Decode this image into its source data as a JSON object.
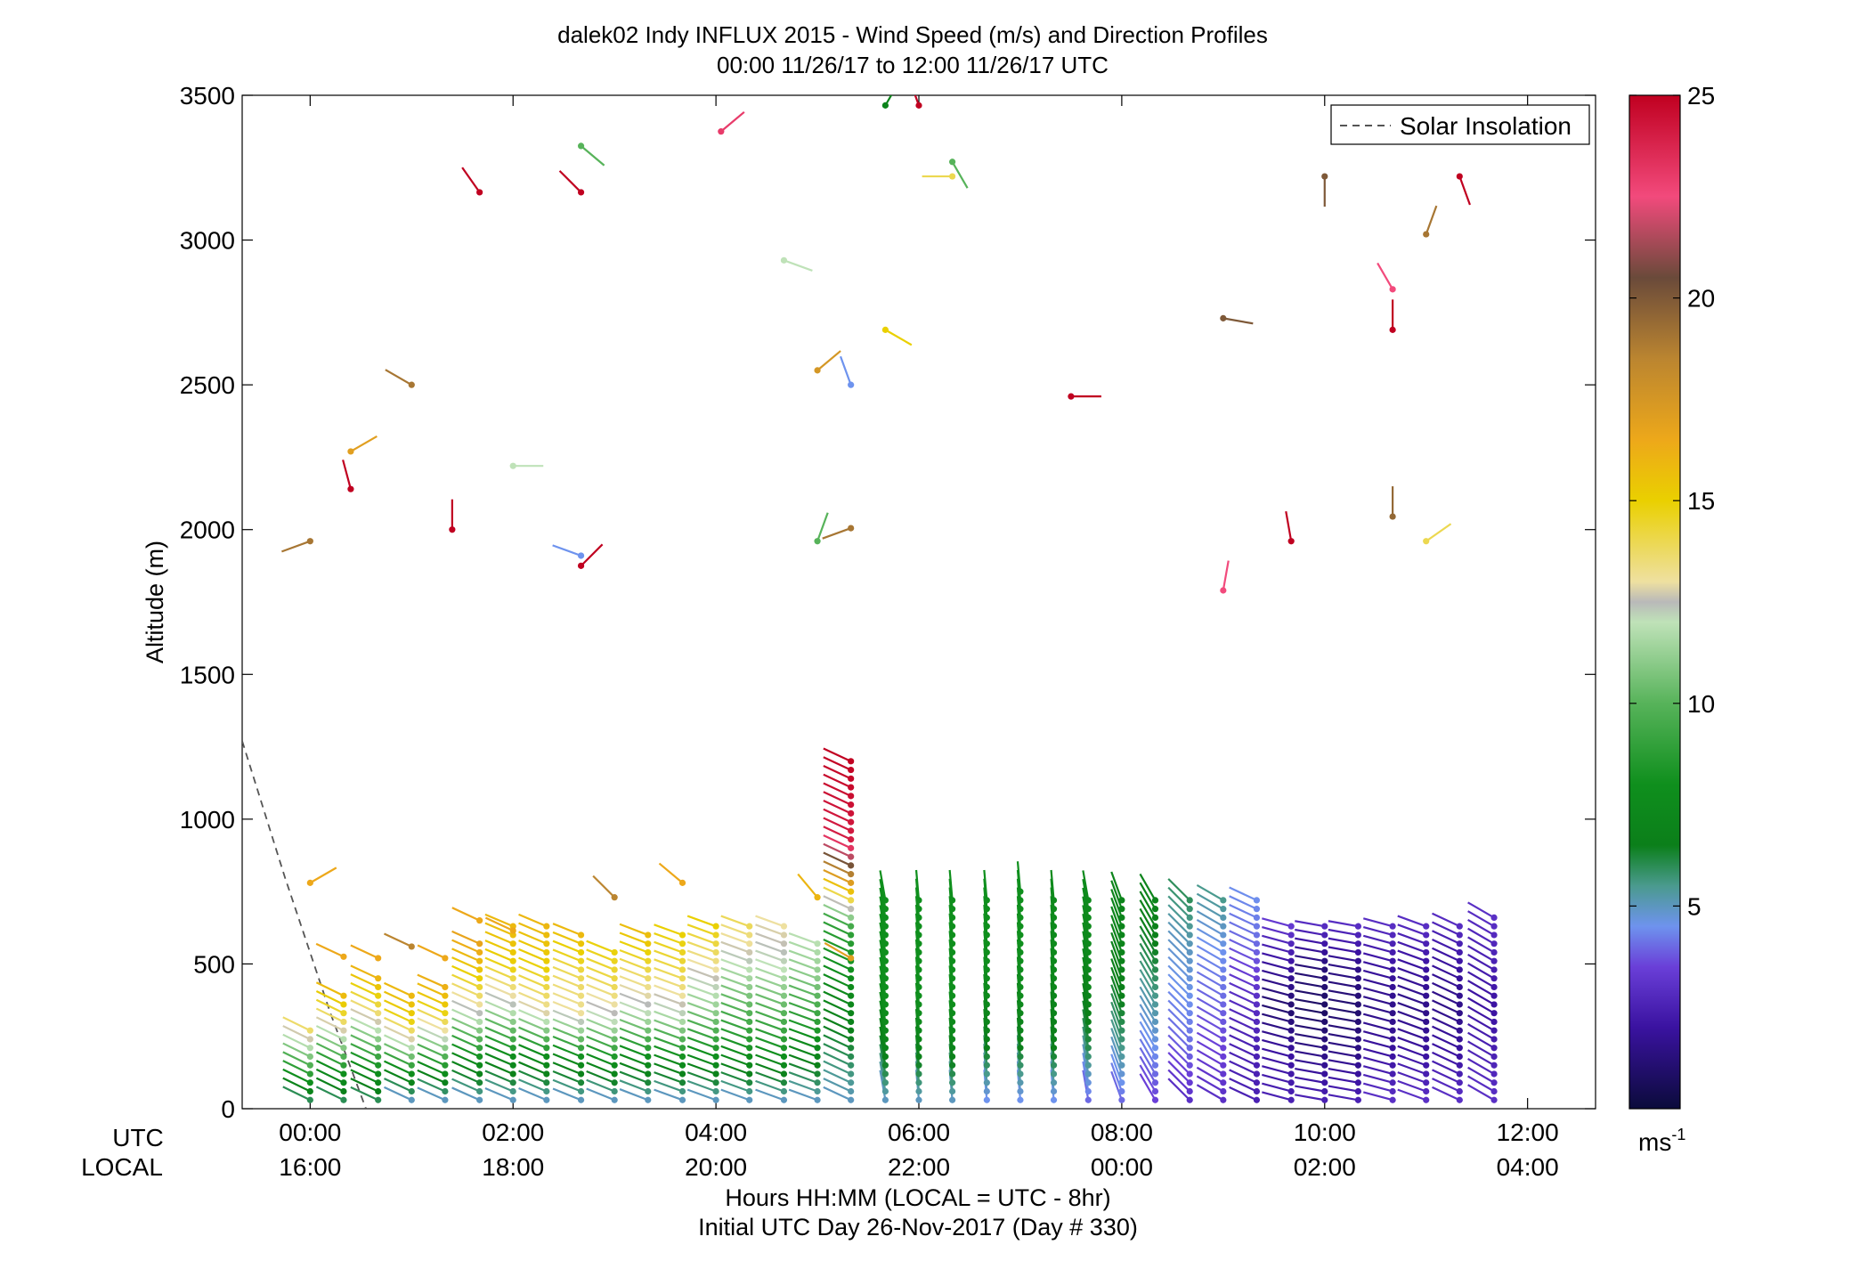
{
  "chart_data": {
    "type": "scatter",
    "title": "dalek02 Indy INFLUX 2015 - Wind Speed (m/s) and Direction Profiles",
    "subtitle": "00:00 11/26/17 to 12:00 11/26/17  UTC",
    "ylabel": "Altitude (m)",
    "xlabel": "Hours HH:MM  (LOCAL = UTC - 8hr)",
    "xlabel2": "Initial UTC Day 26-Nov-2017 (Day # 330)",
    "ylim": [
      0,
      3500
    ],
    "xlim_hours": [
      -0.67,
      12.67
    ],
    "y_ticks": [
      "0",
      "500",
      "1000",
      "1500",
      "2000",
      "2500",
      "3000",
      "3500"
    ],
    "x_row_labels": {
      "utc": "UTC",
      "local": "LOCAL"
    },
    "x_ticks": [
      {
        "hour": 0,
        "utc": "00:00",
        "local": "16:00"
      },
      {
        "hour": 2,
        "utc": "02:00",
        "local": "18:00"
      },
      {
        "hour": 4,
        "utc": "04:00",
        "local": "20:00"
      },
      {
        "hour": 6,
        "utc": "06:00",
        "local": "22:00"
      },
      {
        "hour": 8,
        "utc": "08:00",
        "local": "00:00"
      },
      {
        "hour": 10,
        "utc": "10:00",
        "local": "02:00"
      },
      {
        "hour": 12,
        "utc": "12:00",
        "local": "04:00"
      }
    ],
    "legend": [
      {
        "label": "Solar Insolation",
        "style": "dashed",
        "color": "#555555"
      }
    ],
    "legend_position": "top-right",
    "grid": false,
    "colorbar": {
      "min": 0,
      "max": 25,
      "ticks": [
        "5",
        "10",
        "15",
        "20",
        "25"
      ],
      "unit_label": "ms",
      "unit_exp": "-1",
      "stops": [
        {
          "v": 0,
          "c": "#0b0b3b"
        },
        {
          "v": 2,
          "c": "#3a12a0"
        },
        {
          "v": 3.5,
          "c": "#6a3fd8"
        },
        {
          "v": 4.5,
          "c": "#6e93ee"
        },
        {
          "v": 5.5,
          "c": "#4a9a8e"
        },
        {
          "v": 6.5,
          "c": "#0b7f1a"
        },
        {
          "v": 8,
          "c": "#0f8f1d"
        },
        {
          "v": 10,
          "c": "#57b35a"
        },
        {
          "v": 12,
          "c": "#bfe2b8"
        },
        {
          "v": 12.5,
          "c": "#b9b9b9"
        },
        {
          "v": 13,
          "c": "#eee0a0"
        },
        {
          "v": 15,
          "c": "#ead000"
        },
        {
          "v": 16.5,
          "c": "#eda81a"
        },
        {
          "v": 18.5,
          "c": "#bb8530"
        },
        {
          "v": 20.5,
          "c": "#6a4a3a"
        },
        {
          "v": 22.5,
          "c": "#f24a7c"
        },
        {
          "v": 25,
          "c": "#c00020"
        }
      ]
    },
    "solar_insolation": [
      {
        "hour": -0.67,
        "alt": 1270
      },
      {
        "hour": -0.25,
        "alt": 800
      },
      {
        "hour": 0.2,
        "alt": 330
      },
      {
        "hour": 0.55,
        "alt": 0
      }
    ],
    "profile_times": [
      0,
      0.33,
      0.67,
      1.0,
      1.33,
      1.67,
      2.0,
      2.33,
      2.67,
      3.0,
      3.33,
      3.67,
      4.0,
      4.33,
      4.67,
      5.0,
      5.33,
      5.67,
      6.0,
      6.33,
      6.67,
      7.0,
      7.33,
      7.67,
      8.0,
      8.33,
      8.67,
      9.0,
      9.33,
      9.67,
      10.0,
      10.33,
      10.67,
      11.0,
      11.33,
      11.67
    ],
    "profile_top_alt": [
      280,
      400,
      450,
      400,
      440,
      590,
      650,
      640,
      610,
      560,
      620,
      600,
      630,
      640,
      630,
      590,
      1210,
      740,
      740,
      720,
      740,
      750,
      720,
      730,
      720,
      740,
      730,
      720,
      740,
      650,
      640,
      640,
      640,
      640,
      650,
      660
    ],
    "profile_speeds": [
      [
        6,
        8,
        10,
        12,
        14
      ],
      [
        6,
        8,
        11,
        14,
        16
      ],
      [
        6,
        8,
        11,
        14,
        16
      ],
      [
        5,
        8,
        12,
        15,
        16
      ],
      [
        5,
        8,
        12,
        15,
        16.5
      ],
      [
        5,
        8,
        12,
        15,
        17
      ],
      [
        5,
        8,
        12,
        15,
        16
      ],
      [
        5,
        8,
        13,
        15,
        16
      ],
      [
        5,
        8,
        13,
        14,
        16
      ],
      [
        5,
        8,
        12,
        14,
        15
      ],
      [
        5,
        8,
        12,
        14,
        16
      ],
      [
        5,
        8,
        12,
        14,
        15
      ],
      [
        5,
        8,
        11,
        13,
        15
      ],
      [
        5,
        8,
        10,
        12,
        14
      ],
      [
        5,
        8,
        10,
        12,
        13
      ],
      [
        5,
        7,
        9,
        11,
        12
      ],
      [
        5,
        7,
        9,
        24,
        25
      ],
      [
        5,
        7,
        8,
        8,
        8
      ],
      [
        5,
        7,
        8,
        8,
        8
      ],
      [
        5,
        7,
        8,
        8,
        8
      ],
      [
        4.5,
        6.5,
        7.5,
        8,
        8
      ],
      [
        4.5,
        6.5,
        7.5,
        8,
        8
      ],
      [
        4.5,
        6.5,
        7,
        7.5,
        7.5
      ],
      [
        4,
        6,
        7,
        7.5,
        7.5
      ],
      [
        4,
        5.5,
        6.5,
        7,
        7
      ],
      [
        3.5,
        4.5,
        5.5,
        6.5,
        7
      ],
      [
        3,
        4,
        4.5,
        5,
        6
      ],
      [
        3,
        3.5,
        4,
        4.5,
        5.5
      ],
      [
        2.5,
        2.5,
        3,
        4,
        4.5
      ],
      [
        2.5,
        2,
        1,
        2,
        3.5
      ],
      [
        2.5,
        1.5,
        0.8,
        1.2,
        3
      ],
      [
        2.5,
        1.5,
        1,
        1.5,
        3
      ],
      [
        3,
        2,
        1.5,
        2,
        3
      ],
      [
        3,
        2,
        1.5,
        2,
        3
      ],
      [
        3,
        2,
        1.5,
        2,
        3
      ],
      [
        3,
        2.5,
        2,
        2.5,
        3
      ]
    ],
    "barb_dir_deg": [
      296,
      296,
      295,
      295,
      294,
      294,
      293,
      293,
      292,
      292,
      291,
      290,
      290,
      290,
      290,
      290,
      295,
      350,
      355,
      355,
      355,
      355,
      355,
      350,
      340,
      330,
      315,
      300,
      295,
      285,
      280,
      280,
      285,
      290,
      295,
      300
    ],
    "sparse_points": [
      {
        "hour": 0.0,
        "alt": 780,
        "speed": 16.5,
        "dir": 60
      },
      {
        "hour": 0.33,
        "alt": 525,
        "speed": 16.5,
        "dir": 295
      },
      {
        "hour": 0.67,
        "alt": 520,
        "speed": 16.5,
        "dir": 295
      },
      {
        "hour": 1.0,
        "alt": 560,
        "speed": 18.5,
        "dir": 295
      },
      {
        "hour": 1.33,
        "alt": 520,
        "speed": 16.5,
        "dir": 295
      },
      {
        "hour": 1.67,
        "alt": 650,
        "speed": 16.5,
        "dir": 295
      },
      {
        "hour": 2.0,
        "alt": 615,
        "speed": 16.5,
        "dir": 295
      },
      {
        "hour": 3.0,
        "alt": 730,
        "speed": 18.5,
        "dir": 315
      },
      {
        "hour": 3.67,
        "alt": 780,
        "speed": 16.5,
        "dir": 310
      },
      {
        "hour": 5.0,
        "alt": 730,
        "speed": 16,
        "dir": 320
      },
      {
        "hour": 5.33,
        "alt": 520,
        "speed": 17,
        "dir": 300
      },
      {
        "hour": 0.0,
        "alt": 1960,
        "speed": 19,
        "dir": 250
      },
      {
        "hour": 0.4,
        "alt": 2140,
        "speed": 25,
        "dir": 345
      },
      {
        "hour": 0.4,
        "alt": 2270,
        "speed": 17,
        "dir": 60
      },
      {
        "hour": 1.0,
        "alt": 2500,
        "speed": 19,
        "dir": 300
      },
      {
        "hour": 1.4,
        "alt": 2000,
        "speed": 25,
        "dir": 0
      },
      {
        "hour": 1.67,
        "alt": 3165,
        "speed": 25,
        "dir": 325
      },
      {
        "hour": 2.0,
        "alt": 2220,
        "speed": 12,
        "dir": 90
      },
      {
        "hour": 2.67,
        "alt": 3165,
        "speed": 25,
        "dir": 315
      },
      {
        "hour": 2.67,
        "alt": 3325,
        "speed": 10,
        "dir": 130
      },
      {
        "hour": 2.67,
        "alt": 1910,
        "speed": 4.5,
        "dir": 290
      },
      {
        "hour": 2.67,
        "alt": 1875,
        "speed": 25,
        "dir": 45
      },
      {
        "hour": 4.05,
        "alt": 3375,
        "speed": 23,
        "dir": 50
      },
      {
        "hour": 4.67,
        "alt": 2930,
        "speed": 12,
        "dir": 110
      },
      {
        "hour": 5.0,
        "alt": 2550,
        "speed": 17.5,
        "dir": 50
      },
      {
        "hour": 5.0,
        "alt": 1960,
        "speed": 10,
        "dir": 20
      },
      {
        "hour": 5.33,
        "alt": 2005,
        "speed": 19,
        "dir": 250
      },
      {
        "hour": 5.33,
        "alt": 2500,
        "speed": 4.5,
        "dir": 340
      },
      {
        "hour": 5.67,
        "alt": 3465,
        "speed": 7,
        "dir": 30
      },
      {
        "hour": 5.67,
        "alt": 2690,
        "speed": 15,
        "dir": 120
      },
      {
        "hour": 6.0,
        "alt": 3465,
        "speed": 25,
        "dir": 340
      },
      {
        "hour": 6.33,
        "alt": 3270,
        "speed": 10,
        "dir": 150
      },
      {
        "hour": 6.33,
        "alt": 3220,
        "speed": 14,
        "dir": 270
      },
      {
        "hour": 7.5,
        "alt": 2460,
        "speed": 25,
        "dir": 90
      },
      {
        "hour": 9.0,
        "alt": 1790,
        "speed": 22.5,
        "dir": 10
      },
      {
        "hour": 9.0,
        "alt": 2730,
        "speed": 20,
        "dir": 100
      },
      {
        "hour": 9.67,
        "alt": 1960,
        "speed": 25,
        "dir": 350
      },
      {
        "hour": 10.0,
        "alt": 3220,
        "speed": 20,
        "dir": 180
      },
      {
        "hour": 10.67,
        "alt": 2830,
        "speed": 22.5,
        "dir": 330
      },
      {
        "hour": 10.67,
        "alt": 2690,
        "speed": 25,
        "dir": 0
      },
      {
        "hour": 10.67,
        "alt": 2045,
        "speed": 19.5,
        "dir": 0
      },
      {
        "hour": 11.0,
        "alt": 3020,
        "speed": 19,
        "dir": 20
      },
      {
        "hour": 11.0,
        "alt": 1960,
        "speed": 14,
        "dir": 55
      },
      {
        "hour": 11.33,
        "alt": 3220,
        "speed": 25,
        "dir": 160
      }
    ]
  }
}
